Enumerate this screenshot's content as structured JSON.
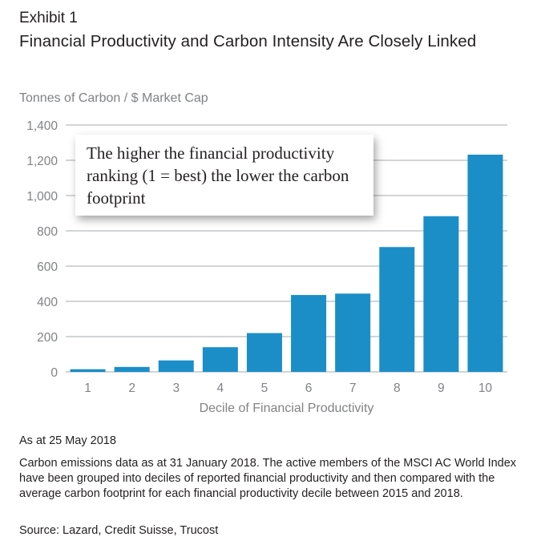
{
  "header": {
    "exhibit": "Exhibit 1",
    "title": "Financial Productivity and Carbon Intensity Are Closely Linked"
  },
  "callout": {
    "text": "The higher the financial productivity ranking (1 = best) the lower the carbon footprint"
  },
  "notes": {
    "date": "As at 25 May 2018",
    "body": "Carbon emissions data as at 31 January 2018. The active members of the MSCI AC World Index have been grouped into deciles of reported financial productivity and then compared with the average carbon footprint for each financial productivity decile between 2015 and 2018.",
    "source": "Source: Lazard, Credit Suisse, Trucost"
  },
  "colors": {
    "bar": "#1b8ec7",
    "grid": "#a7a9ac",
    "axis_text": "#808285"
  },
  "chart_data": {
    "type": "bar",
    "title": "Financial Productivity and Carbon Intensity Are Closely Linked",
    "xlabel": "Decile of Financial Productivity",
    "ylabel": "Tonnes of Carbon / $ Market Cap",
    "categories": [
      "1",
      "2",
      "3",
      "4",
      "5",
      "6",
      "7",
      "8",
      "9",
      "10"
    ],
    "values": [
      15,
      28,
      65,
      140,
      220,
      436,
      444,
      708,
      883,
      1232
    ],
    "ylim": [
      0,
      1400
    ],
    "yticks": [
      0,
      200,
      400,
      600,
      800,
      1000,
      1200,
      1400
    ],
    "ytick_labels": [
      "0",
      "200",
      "400",
      "600",
      "800",
      "1,000",
      "1,200",
      "1,400"
    ],
    "grid": true,
    "legend": "none"
  }
}
